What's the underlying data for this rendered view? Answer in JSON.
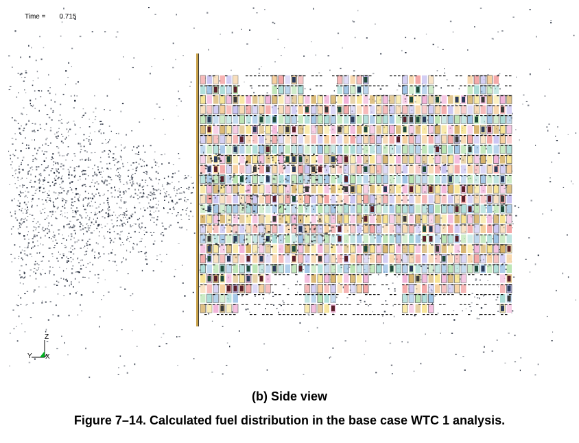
{
  "readout": {
    "time_label": "Time =",
    "time_value": "0.715"
  },
  "axes": {
    "z": "Z",
    "y": "Y",
    "x": "X"
  },
  "captions": {
    "sub": "(b) Side view",
    "figure": "Figure 7–14.  Calculated fuel distribution in the base case WTC 1 analysis."
  },
  "palette": {
    "floor_colors": [
      "#f4a6a6",
      "#f7e38f",
      "#b8e3b0",
      "#c9c3f2",
      "#f2b3d9",
      "#a9dcd6",
      "#f6cf9c",
      "#d7b36a",
      "#9ec3e6"
    ],
    "dark_accents": [
      "#5a1f2a",
      "#2a3a5a",
      "#1e4a3a",
      "#3a3a3a"
    ],
    "particle": "#1a2233",
    "triad_green": "#00b020"
  }
}
